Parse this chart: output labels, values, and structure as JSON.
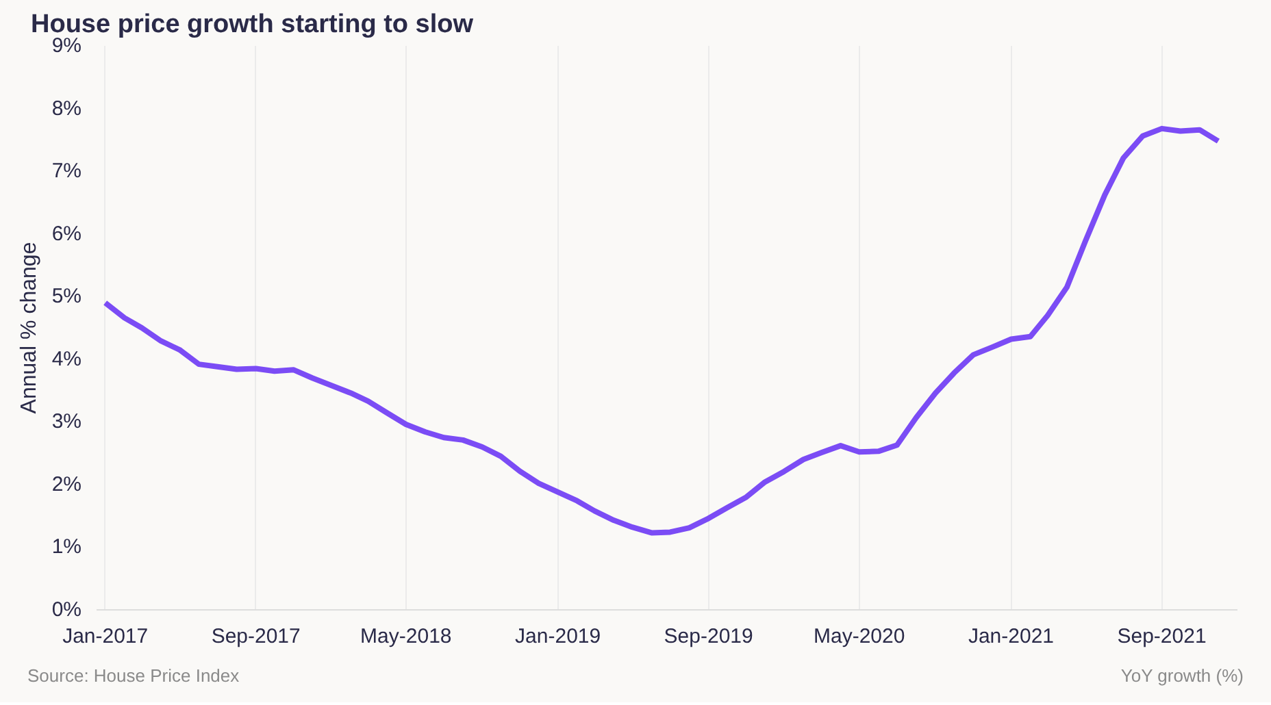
{
  "chart_data": {
    "type": "line",
    "title": "House price growth starting to slow",
    "ylabel": "Annual % change",
    "annotations": [
      "Source: House Price Index",
      "YoY growth (%)"
    ],
    "x": [
      "2017-01",
      "2017-02",
      "2017-03",
      "2017-04",
      "2017-05",
      "2017-06",
      "2017-07",
      "2017-08",
      "2017-09",
      "2017-10",
      "2017-11",
      "2017-12",
      "2018-01",
      "2018-02",
      "2018-03",
      "2018-04",
      "2018-05",
      "2018-06",
      "2018-07",
      "2018-08",
      "2018-09",
      "2018-10",
      "2018-11",
      "2018-12",
      "2019-01",
      "2019-02",
      "2019-03",
      "2019-04",
      "2019-05",
      "2019-06",
      "2019-07",
      "2019-08",
      "2019-09",
      "2019-10",
      "2019-11",
      "2019-12",
      "2020-01",
      "2020-02",
      "2020-03",
      "2020-04",
      "2020-05",
      "2020-06",
      "2020-07",
      "2020-08",
      "2020-09",
      "2020-10",
      "2020-11",
      "2020-12",
      "2021-01",
      "2021-02",
      "2021-03",
      "2021-04",
      "2021-05",
      "2021-06",
      "2021-07",
      "2021-08",
      "2021-09",
      "2021-10",
      "2021-11",
      "2021-12"
    ],
    "series": [
      {
        "color": "#7b4cf5",
        "values": [
          4.9,
          4.66,
          4.5,
          4.29,
          4.15,
          3.92,
          3.88,
          3.84,
          3.85,
          3.81,
          3.83,
          3.7,
          3.58,
          3.46,
          3.33,
          3.14,
          2.96,
          2.84,
          2.75,
          2.71,
          2.6,
          2.45,
          2.21,
          2.02,
          1.88,
          1.74,
          1.58,
          1.43,
          1.32,
          1.23,
          1.24,
          1.31,
          1.46,
          1.63,
          1.8,
          2.04,
          2.21,
          2.4,
          2.51,
          2.62,
          2.52,
          2.53,
          2.63,
          3.07,
          3.46,
          3.78,
          4.07,
          4.19,
          4.32,
          4.36,
          4.7,
          5.15,
          5.89,
          6.62,
          7.21,
          7.56,
          7.68,
          7.64,
          7.66,
          7.48
        ]
      }
    ],
    "xlim": [
      "2016-12-18",
      "2022-01-01"
    ],
    "ylim": [
      0,
      9
    ],
    "xticks": [
      {
        "value": "2017-01",
        "label": "Jan-2017"
      },
      {
        "value": "2017-09",
        "label": "Sep-2017"
      },
      {
        "value": "2018-05",
        "label": "May-2018"
      },
      {
        "value": "2019-01",
        "label": "Jan-2019"
      },
      {
        "value": "2019-09",
        "label": "Sep-2019"
      },
      {
        "value": "2020-05",
        "label": "May-2020"
      },
      {
        "value": "2021-01",
        "label": "Jan-2021"
      },
      {
        "value": "2021-09",
        "label": "Sep-2021"
      }
    ],
    "yticks": [
      {
        "value": 0,
        "label": "0%"
      },
      {
        "value": 1,
        "label": "1%"
      },
      {
        "value": 2,
        "label": "2%"
      },
      {
        "value": 3,
        "label": "3%"
      },
      {
        "value": 4,
        "label": "4%"
      },
      {
        "value": 5,
        "label": "5%"
      },
      {
        "value": 6,
        "label": "6%"
      },
      {
        "value": 7,
        "label": "7%"
      },
      {
        "value": 8,
        "label": "8%"
      },
      {
        "value": 9,
        "label": "9%"
      }
    ],
    "grid": "x",
    "marker": "none",
    "line_style": "solid"
  }
}
